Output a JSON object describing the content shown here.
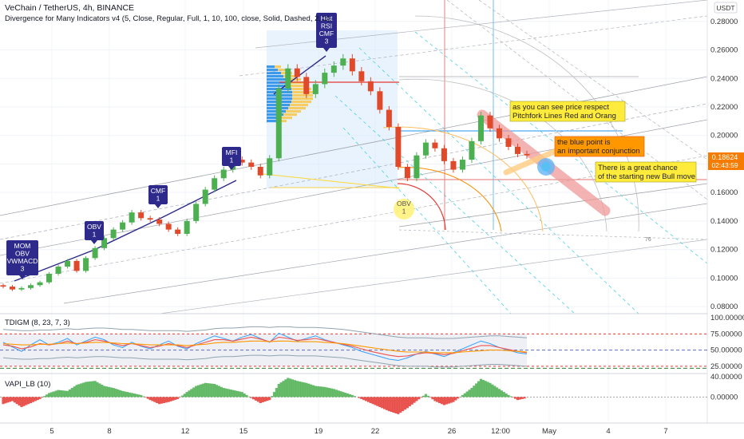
{
  "header": {
    "title": "VeChain / TetherUS, 4h, BINANCE",
    "indicator": "Divergence for Many Indicators v4 (5, Close, Regular, Full, 1, 10, 100, close, Solid, Dashed, 2, 1)",
    "currency": "USDT"
  },
  "colors": {
    "up": "#26a69a",
    "down": "#ef5350",
    "candle_up": "#4caf50",
    "candle_down": "#e04a2a",
    "divergence": "#2e2a8c",
    "fork_red": "#e57373",
    "fork_orange": "#ffb74d",
    "blue_line": "#2196f3",
    "price_label": "#f57c00"
  },
  "chart_data": [
    {
      "type": "candlestick",
      "name": "main",
      "y_axis_ticks": [
        "0.28000",
        "0.26000",
        "0.24000",
        "0.22000",
        "0.20000",
        "0.18000",
        "0.16000",
        "0.14000",
        "0.12000",
        "0.10000",
        "0.08000"
      ],
      "x_axis_ticks": [
        "5",
        "8",
        "12",
        "15",
        "19",
        "22",
        "26",
        "12:00",
        "May",
        "4",
        "7"
      ],
      "ylim": [
        0.075,
        0.295
      ],
      "last_price": "0.18624",
      "countdown": "02:43:59",
      "close": [
        0.094,
        0.092,
        0.093,
        0.095,
        0.097,
        0.103,
        0.108,
        0.112,
        0.105,
        0.114,
        0.121,
        0.128,
        0.134,
        0.139,
        0.146,
        0.142,
        0.141,
        0.138,
        0.134,
        0.131,
        0.14,
        0.152,
        0.162,
        0.17,
        0.176,
        0.183,
        0.181,
        0.178,
        0.172,
        0.184,
        0.233,
        0.247,
        0.241,
        0.229,
        0.236,
        0.244,
        0.249,
        0.254,
        0.245,
        0.238,
        0.231,
        0.218,
        0.206,
        0.178,
        0.17,
        0.186,
        0.195,
        0.191,
        0.182,
        0.176,
        0.183,
        0.196,
        0.214,
        0.205,
        0.198,
        0.192,
        0.187,
        0.186
      ],
      "labels": [
        {
          "text": "MOM\nOBV\nVWMACD\n3",
          "kind": "bull"
        },
        {
          "text": "OBV\n1",
          "kind": "bull"
        },
        {
          "text": "CMF\n1",
          "kind": "bull"
        },
        {
          "text": "MFI\n1",
          "kind": "bull"
        },
        {
          "text": "Hist\nRSI\nCMF\n3",
          "kind": "bear"
        },
        {
          "text": "OBV\n1",
          "kind": "hidden"
        }
      ],
      "annotations": [
        "as you can see price respect Pitchfork Lines Red and Orang",
        "the blue point is an important conjunction",
        "There is a great chance of the starting new Bull move"
      ],
      "marker": "76"
    },
    {
      "type": "line",
      "name": "TDIGM (8, 23, 7, 3)",
      "y_axis_ticks": [
        "100.00000",
        "75.00000",
        "50.00000",
        "25.00000"
      ],
      "ylim": [
        15,
        105
      ],
      "series": [
        {
          "values": [
            62,
            55,
            48,
            58,
            66,
            58,
            62,
            68,
            58,
            64,
            70,
            66,
            58,
            54,
            62,
            56,
            52,
            58,
            64,
            56,
            52,
            60,
            66,
            72,
            68,
            64,
            70,
            74,
            68,
            62,
            76,
            70,
            64,
            68,
            72,
            66,
            62,
            58,
            54,
            48,
            44,
            40,
            36,
            34,
            38,
            44,
            48,
            44,
            40,
            46,
            52,
            58,
            64,
            60,
            54,
            50,
            46,
            44
          ]
        },
        {
          "values": [
            58,
            56,
            52,
            55,
            60,
            58,
            60,
            64,
            60,
            62,
            66,
            64,
            60,
            57,
            60,
            57,
            54,
            56,
            60,
            57,
            54,
            58,
            62,
            66,
            66,
            64,
            67,
            70,
            67,
            63,
            70,
            68,
            65,
            66,
            68,
            65,
            62,
            59,
            56,
            52,
            48,
            45,
            42,
            40,
            41,
            44,
            46,
            45,
            43,
            45,
            49,
            53,
            57,
            57,
            54,
            51,
            48,
            46
          ]
        },
        {
          "values": [
            60,
            59,
            58,
            58,
            59,
            59,
            60,
            61,
            60,
            61,
            62,
            62,
            61,
            60,
            60,
            59,
            58,
            58,
            58,
            58,
            57,
            58,
            59,
            61,
            62,
            62,
            63,
            64,
            64,
            63,
            64,
            64,
            63,
            63,
            63,
            62,
            61,
            60,
            58,
            56,
            54,
            52,
            50,
            48,
            47,
            47,
            47,
            46,
            46,
            46,
            47,
            48,
            49,
            50,
            50,
            49,
            48,
            47
          ]
        }
      ]
    },
    {
      "type": "area",
      "name": "VAPI_LB (10)",
      "y_axis_ticks": [
        "40.00000",
        "0.00000"
      ],
      "ylim": [
        -50,
        45
      ],
      "values": [
        -14,
        -8,
        -20,
        -12,
        -4,
        8,
        14,
        12,
        24,
        30,
        32,
        22,
        18,
        12,
        8,
        4,
        -6,
        -14,
        -10,
        -4,
        10,
        22,
        28,
        26,
        18,
        14,
        10,
        -2,
        -12,
        -6,
        26,
        38,
        32,
        28,
        22,
        20,
        16,
        10,
        4,
        -4,
        -12,
        -20,
        -28,
        -34,
        -22,
        -8,
        6,
        -8,
        -16,
        -10,
        4,
        18,
        36,
        28,
        16,
        4,
        -6,
        -2
      ]
    }
  ]
}
